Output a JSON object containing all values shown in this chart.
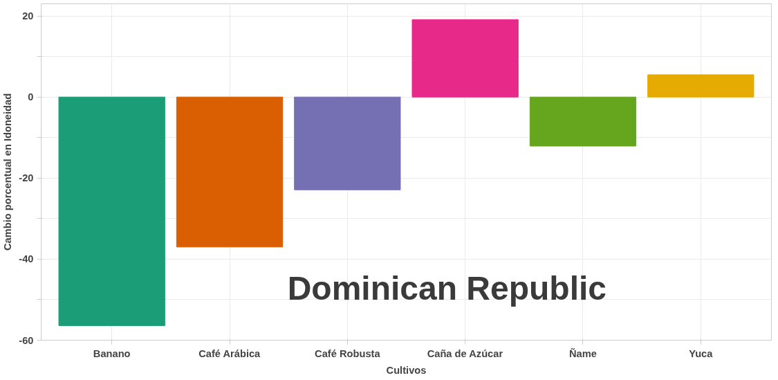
{
  "chart_data": {
    "type": "bar",
    "xlabel": "Cultivos",
    "ylabel": "Cambio porcentual en Idoneidad",
    "categories": [
      "Banano",
      "Café Arábica",
      "Café Robusta",
      "Caña de Azúcar",
      "Ñame",
      "Yuca"
    ],
    "values": [
      -56.4,
      -37.0,
      -22.9,
      19.1,
      -12.1,
      5.5
    ],
    "colors": [
      "#1b9e77",
      "#d95f02",
      "#7570b3",
      "#e7298a",
      "#66a61e",
      "#e6ab02"
    ],
    "ylim": [
      -60,
      23
    ],
    "yticks": [
      -60,
      {
        "value": -50,
        "label": null
      },
      -40,
      {
        "value": -30,
        "label": null
      },
      -20,
      {
        "value": -10,
        "label": null
      },
      0,
      {
        "value": 10,
        "label": null
      },
      20
    ],
    "grid": true,
    "annotations": [
      "Dominican Republic"
    ]
  }
}
